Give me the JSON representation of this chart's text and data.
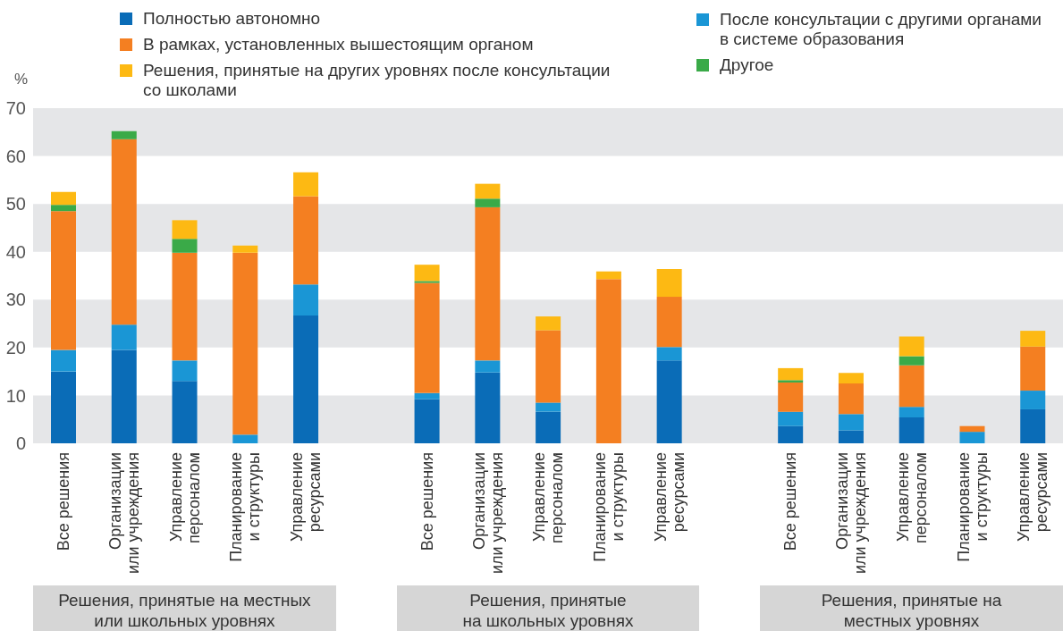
{
  "chart_data": {
    "type": "bar",
    "stacked": true,
    "ylabel": "%",
    "categories": [
      "Все решения",
      "Организации или учреждения",
      "Управление персоналом",
      "Планирование и структуры",
      "Управление ресурсами",
      null,
      "Все решения",
      "Организации или учреждения",
      "Управление персоналом",
      "Планирование и структуры",
      "Управление ресурсами",
      null,
      "Все решения",
      "Организации или учреждения",
      "Управление персоналом",
      "Планирование и структуры",
      "Управление ресурсами"
    ],
    "series": [
      {
        "name": "Полностью автономно",
        "color": "#0a6cb7",
        "values": [
          15,
          19.5,
          13,
          null,
          26.7,
          null,
          9.2,
          14.8,
          6.6,
          null,
          17.3,
          null,
          3.6,
          2.7,
          5.4,
          null,
          7.1
        ]
      },
      {
        "name": "После консультации с другими органами в системе образования",
        "color": "#1a96d5",
        "values": [
          4.5,
          5.3,
          4.3,
          1.8,
          6.5,
          null,
          1.3,
          2.5,
          1.9,
          null,
          2.8,
          null,
          3.0,
          3.4,
          2.2,
          2.4,
          3.9
        ]
      },
      {
        "name": "В рамках, установленных вышестоящим органом",
        "color": "#f47f21",
        "values": [
          29,
          38.7,
          22.5,
          38,
          18.4,
          null,
          23,
          32,
          15.1,
          34.3,
          10.5,
          null,
          6.1,
          6.4,
          8.7,
          1.2,
          9.2
        ]
      },
      {
        "name": "Другое",
        "color": "#3aaa48",
        "values": [
          1.3,
          1.7,
          2.9,
          null,
          null,
          null,
          0.4,
          1.8,
          null,
          null,
          null,
          null,
          0.5,
          null,
          1.9,
          null,
          null
        ]
      },
      {
        "name": "Решения, принятые на других уровнях после консультации со школами",
        "color": "#fdb913",
        "values": [
          2.7,
          null,
          3.9,
          1.5,
          5.0,
          null,
          3.4,
          3.1,
          2.9,
          1.6,
          5.8,
          null,
          2.5,
          2.2,
          4.1,
          null,
          3.3
        ]
      }
    ],
    "ylim": [
      0,
      70
    ],
    "yticks": [
      0,
      10,
      20,
      30,
      40,
      50,
      60,
      70
    ],
    "legend": "top",
    "bands": [
      {
        "axis": "y",
        "from": 0,
        "to": 10,
        "color": "#e5e6e8"
      },
      {
        "axis": "y",
        "from": 20,
        "to": 30,
        "color": "#e5e6e8"
      },
      {
        "axis": "y",
        "from": 40,
        "to": 50,
        "color": "#e5e6e8"
      },
      {
        "axis": "y",
        "from": 60,
        "to": 70,
        "color": "#e5e6e8"
      }
    ],
    "annotations": [
      "Решения, принятые на местных\nили школьных уровнях",
      "Решения, принятые\nна школьных уровнях",
      "Решения, принятые на\nместных уровнях"
    ]
  }
}
